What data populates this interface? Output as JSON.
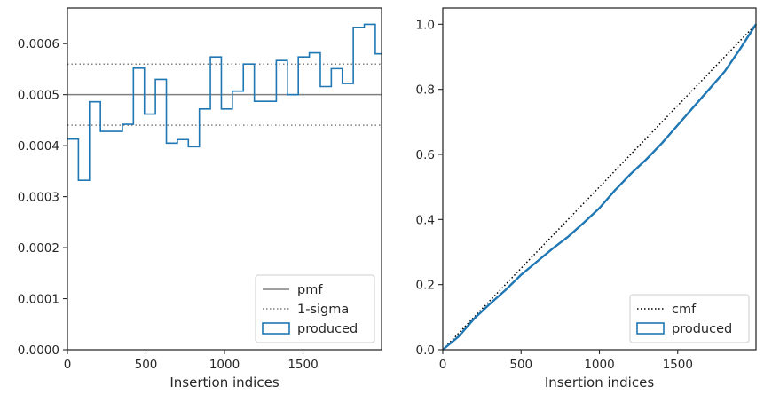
{
  "chart_data": [
    {
      "type": "histogram-step",
      "xlabel": "Insertion indices",
      "ylabel": "",
      "xlim": [
        0,
        2000
      ],
      "ylim": [
        0,
        0.00067
      ],
      "x_ticks": [
        0,
        500,
        1000,
        1500
      ],
      "y_ticks": [
        0,
        0.0001,
        0.0002,
        0.0003,
        0.0004,
        0.0005,
        0.0006
      ],
      "y_tick_labels": [
        "0.0000",
        "0.0001",
        "0.0002",
        "0.0003",
        "0.0004",
        "0.0005",
        "0.0006"
      ],
      "pmf": 0.0005,
      "sigma_band": [
        0.00044,
        0.00056
      ],
      "bin_edges": [
        0,
        70,
        140,
        210,
        280,
        350,
        420,
        490,
        560,
        630,
        700,
        770,
        840,
        910,
        980,
        1050,
        1120,
        1190,
        1260,
        1330,
        1400,
        1470,
        1540,
        1610,
        1680,
        1750,
        1820,
        1890,
        1960,
        2000
      ],
      "produced": [
        0.000413,
        0.000332,
        0.000486,
        0.000428,
        0.000428,
        0.000442,
        0.000552,
        0.000462,
        0.00053,
        0.000405,
        0.000412,
        0.000398,
        0.000472,
        0.000574,
        0.000472,
        0.000507,
        0.00056,
        0.000487,
        0.000487,
        0.000567,
        0.0005,
        0.000574,
        0.000582,
        0.000516,
        0.000551,
        0.000522,
        0.000632,
        0.000638,
        0.00058
      ],
      "legend": {
        "placement": "lower-right",
        "entries": [
          {
            "label": "pmf",
            "style": "solid",
            "color": "#808080"
          },
          {
            "label": "1-sigma",
            "style": "dotted",
            "color": "#808080"
          },
          {
            "label": "produced",
            "style": "patch",
            "color": "#1f77b4"
          }
        ]
      }
    },
    {
      "type": "line",
      "xlabel": "Insertion indices",
      "ylabel": "",
      "xlim": [
        0,
        2000
      ],
      "ylim": [
        0,
        1.05
      ],
      "x_ticks": [
        0,
        500,
        1000,
        1500
      ],
      "y_ticks": [
        0,
        0.2,
        0.4,
        0.6,
        0.8,
        1.0
      ],
      "y_tick_labels": [
        "0.0",
        "0.2",
        "0.4",
        "0.6",
        "0.8",
        "1.0"
      ],
      "cmf": {
        "x": [
          0,
          2000
        ],
        "y": [
          0,
          1.0
        ]
      },
      "produced": {
        "x": [
          0,
          100,
          200,
          300,
          400,
          500,
          600,
          700,
          800,
          900,
          1000,
          1100,
          1200,
          1300,
          1400,
          1500,
          1600,
          1700,
          1800,
          1900,
          2000
        ],
        "y": [
          0,
          0.04,
          0.095,
          0.14,
          0.183,
          0.23,
          0.27,
          0.31,
          0.347,
          0.39,
          0.435,
          0.49,
          0.54,
          0.585,
          0.635,
          0.69,
          0.745,
          0.8,
          0.855,
          0.925,
          1.0
        ]
      },
      "legend": {
        "placement": "lower-right",
        "entries": [
          {
            "label": "cmf",
            "style": "dotted",
            "color": "#000000"
          },
          {
            "label": "produced",
            "style": "patch",
            "color": "#1f77b4"
          }
        ]
      }
    }
  ]
}
